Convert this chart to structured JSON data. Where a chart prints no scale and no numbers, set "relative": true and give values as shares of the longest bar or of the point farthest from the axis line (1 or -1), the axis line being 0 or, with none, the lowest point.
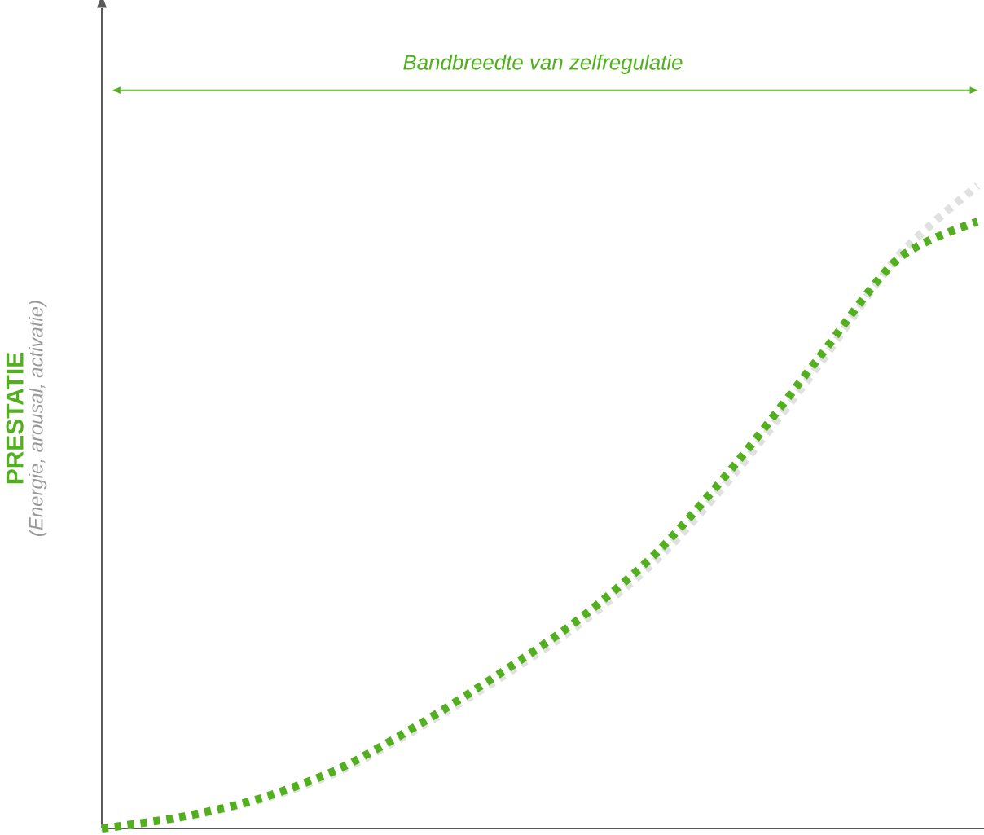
{
  "chart_data": {
    "type": "line",
    "relative": true,
    "ylabel": "PRESTATIE",
    "annotations": [
      "Bandbreedte van zelfregulatie",
      "(Energie, arousal, activatie)"
    ],
    "categories": [
      null,
      null,
      null,
      null,
      null,
      null,
      null,
      null,
      null,
      null,
      null,
      null
    ],
    "series": [
      {
        "color": "#e0e0e0",
        "values": [
          0,
          0.017,
          0.045,
          0.09,
          0.158,
          0.234,
          0.318,
          0.422,
          0.56,
          0.72,
          0.89,
          1.0
        ]
      },
      {
        "color": "#52b01e",
        "values": [
          0,
          0.018,
          0.047,
          0.094,
          0.163,
          0.241,
          0.326,
          0.433,
          0.573,
          0.731,
          0.886,
          0.944
        ]
      }
    ],
    "line_style": "dotted",
    "marker": "none"
  }
}
